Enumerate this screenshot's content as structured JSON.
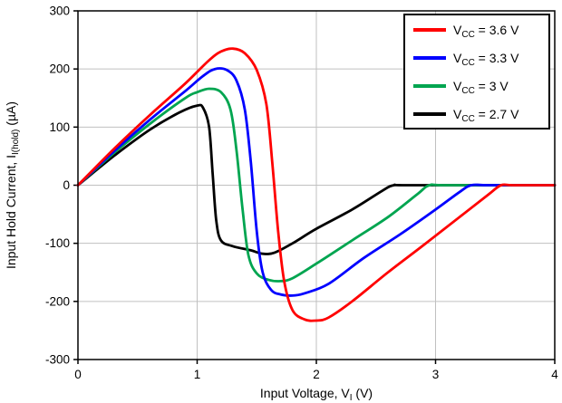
{
  "chart_data": {
    "type": "line",
    "title": "",
    "xlabel": "Input Voltage, V_I (V)",
    "xlabel_parts": {
      "pre": "Input Voltage, V",
      "sub": "I",
      "post": " (V)"
    },
    "ylabel": "Input Hold Current, I_I(hold) (uA)",
    "ylabel_parts": {
      "pre": "Input Hold Current, I",
      "sub": "I(hold)",
      "post": " (µA)"
    },
    "xlim": [
      0,
      4
    ],
    "ylim": [
      -300,
      300
    ],
    "xticks": [
      0,
      1,
      2,
      3,
      4
    ],
    "yticks": [
      -300,
      -200,
      -100,
      0,
      100,
      200,
      300
    ],
    "grid": true,
    "legend_position": "top-right",
    "series": [
      {
        "label": "VCC = 3.6 V",
        "label_parts": {
          "pre": "V",
          "sub": "CC",
          "post": " = 3.6 V"
        },
        "color": "#ff0000",
        "points": [
          [
            0,
            0
          ],
          [
            0.3,
            62
          ],
          [
            0.6,
            120
          ],
          [
            0.9,
            175
          ],
          [
            1.1,
            215
          ],
          [
            1.2,
            230
          ],
          [
            1.3,
            235
          ],
          [
            1.4,
            227
          ],
          [
            1.5,
            198
          ],
          [
            1.58,
            140
          ],
          [
            1.63,
            40
          ],
          [
            1.68,
            -80
          ],
          [
            1.73,
            -165
          ],
          [
            1.8,
            -215
          ],
          [
            1.9,
            -231
          ],
          [
            2.0,
            -233
          ],
          [
            2.1,
            -228
          ],
          [
            2.3,
            -200
          ],
          [
            2.6,
            -150
          ],
          [
            2.9,
            -103
          ],
          [
            3.2,
            -55
          ],
          [
            3.45,
            -15
          ],
          [
            3.55,
            0
          ],
          [
            3.65,
            0
          ],
          [
            4,
            0
          ]
        ]
      },
      {
        "label": "VCC = 3.3 V",
        "label_parts": {
          "pre": "V",
          "sub": "CC",
          "post": " = 3.3 V"
        },
        "color": "#0000ff",
        "points": [
          [
            0,
            0
          ],
          [
            0.3,
            58
          ],
          [
            0.6,
            112
          ],
          [
            0.9,
            162
          ],
          [
            1.05,
            188
          ],
          [
            1.15,
            200
          ],
          [
            1.25,
            198
          ],
          [
            1.33,
            180
          ],
          [
            1.4,
            130
          ],
          [
            1.45,
            40
          ],
          [
            1.5,
            -80
          ],
          [
            1.55,
            -150
          ],
          [
            1.62,
            -180
          ],
          [
            1.7,
            -188
          ],
          [
            1.8,
            -190
          ],
          [
            1.9,
            -186
          ],
          [
            2.1,
            -170
          ],
          [
            2.4,
            -125
          ],
          [
            2.7,
            -85
          ],
          [
            3.0,
            -42
          ],
          [
            3.2,
            -12
          ],
          [
            3.3,
            0
          ],
          [
            3.45,
            0
          ],
          [
            4,
            0
          ]
        ]
      },
      {
        "label": "VCC = 3 V",
        "label_parts": {
          "pre": "V",
          "sub": "CC",
          "post": " = 3 V"
        },
        "color": "#00a550",
        "points": [
          [
            0,
            0
          ],
          [
            0.3,
            55
          ],
          [
            0.6,
            105
          ],
          [
            0.9,
            150
          ],
          [
            1.0,
            160
          ],
          [
            1.1,
            166
          ],
          [
            1.2,
            160
          ],
          [
            1.28,
            130
          ],
          [
            1.33,
            60
          ],
          [
            1.38,
            -40
          ],
          [
            1.43,
            -120
          ],
          [
            1.5,
            -152
          ],
          [
            1.6,
            -163
          ],
          [
            1.7,
            -165
          ],
          [
            1.8,
            -160
          ],
          [
            2.0,
            -135
          ],
          [
            2.3,
            -95
          ],
          [
            2.6,
            -55
          ],
          [
            2.85,
            -15
          ],
          [
            2.95,
            0
          ],
          [
            3.1,
            0
          ],
          [
            4,
            0
          ]
        ]
      },
      {
        "label": "VCC = 2.7 V",
        "label_parts": {
          "pre": "V",
          "sub": "CC",
          "post": " = 2.7 V"
        },
        "color": "#000000",
        "points": [
          [
            0,
            0
          ],
          [
            0.3,
            50
          ],
          [
            0.6,
            95
          ],
          [
            0.85,
            125
          ],
          [
            1.0,
            137
          ],
          [
            1.05,
            133
          ],
          [
            1.1,
            100
          ],
          [
            1.13,
            20
          ],
          [
            1.16,
            -60
          ],
          [
            1.2,
            -95
          ],
          [
            1.3,
            -105
          ],
          [
            1.45,
            -112
          ],
          [
            1.55,
            -118
          ],
          [
            1.65,
            -116
          ],
          [
            1.8,
            -100
          ],
          [
            2.0,
            -75
          ],
          [
            2.3,
            -42
          ],
          [
            2.55,
            -10
          ],
          [
            2.65,
            0
          ],
          [
            2.8,
            0
          ],
          [
            4,
            0
          ]
        ]
      }
    ]
  },
  "colors": {
    "background": "#ffffff",
    "grid": "#c0c0c0",
    "axis": "#000000",
    "legend_border": "#000000",
    "legend_background": "#ffffff"
  }
}
